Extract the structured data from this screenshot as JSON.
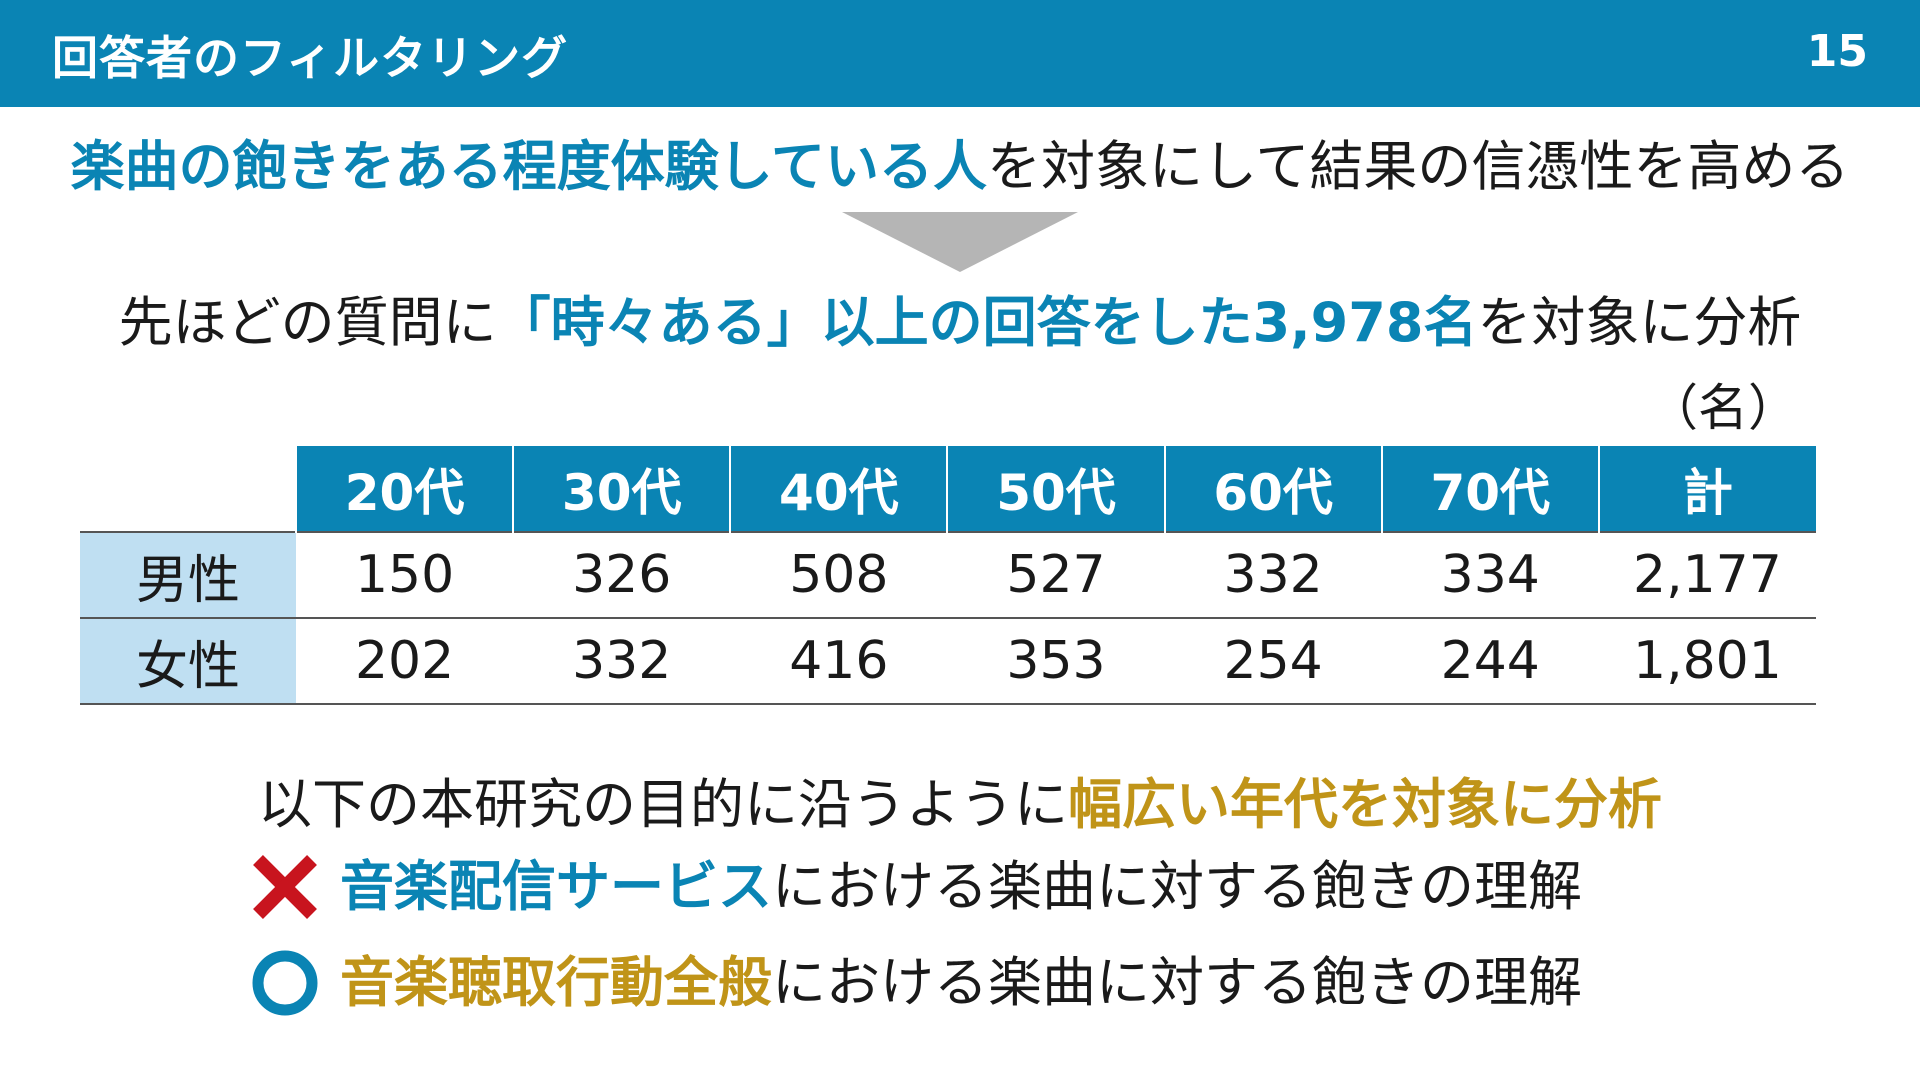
{
  "header": {
    "title": "回答者のフィルタリング",
    "page_number": "15"
  },
  "lead": {
    "highlight": "楽曲の飽きをある程度体験している人",
    "rest": "を対象にして結果の信憑性を高める"
  },
  "filter": {
    "prefix": "先ほどの質問に",
    "highlight": "「時々ある」以上の回答をした3,978名",
    "suffix": "を対象に分析"
  },
  "table": {
    "unit": "（名）",
    "columns": [
      "20代",
      "30代",
      "40代",
      "50代",
      "60代",
      "70代",
      "計"
    ],
    "rows": [
      {
        "label": "男性",
        "values": [
          "150",
          "326",
          "508",
          "527",
          "332",
          "334",
          "2,177"
        ]
      },
      {
        "label": "女性",
        "values": [
          "202",
          "332",
          "416",
          "353",
          "254",
          "244",
          "1,801"
        ]
      }
    ]
  },
  "purpose": {
    "prefix": "以下の本研究の目的に沿うように",
    "highlight": "幅広い年代を対象に分析"
  },
  "points": [
    {
      "icon": "cross-icon",
      "highlight": "音楽配信サービス",
      "rest": "における楽曲に対する飽きの理解"
    },
    {
      "icon": "circle-icon",
      "highlight": "音楽聴取行動全般",
      "rest": "における楽曲に対する飽きの理解"
    }
  ],
  "colors": {
    "header_bg": "#0a84b4",
    "blue_text": "#0a84b4",
    "gold_text": "#c09418",
    "row_label_bg": "#bfdff2",
    "cross_red": "#c8141e",
    "circle_blue": "#0a84b4",
    "arrow_gray": "#b5b5b5"
  }
}
